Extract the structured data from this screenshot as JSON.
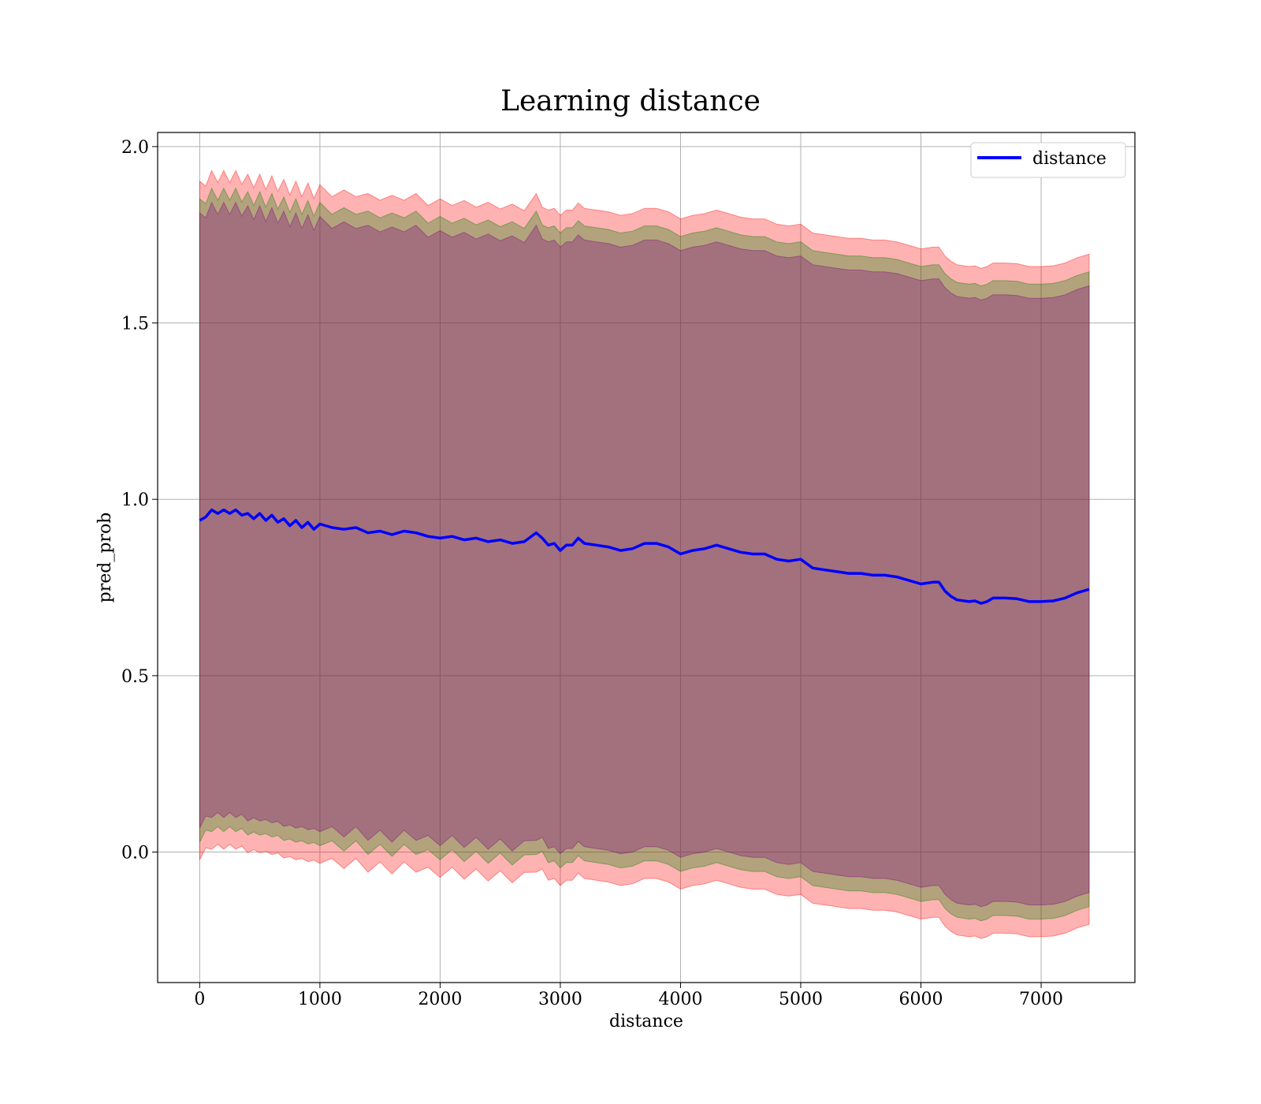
{
  "chart_data": {
    "type": "area",
    "title": "Learning distance",
    "xlabel": "distance",
    "ylabel": "pred_prob",
    "xlim": [
      -350,
      7780
    ],
    "ylim": [
      -0.37,
      2.04
    ],
    "xticks": [
      0,
      1000,
      2000,
      3000,
      4000,
      5000,
      6000,
      7000
    ],
    "yticks": [
      0.0,
      0.5,
      1.0,
      1.5,
      2.0
    ],
    "xtick_labels": [
      "0",
      "1000",
      "2000",
      "3000",
      "4000",
      "5000",
      "6000",
      "7000"
    ],
    "ytick_labels": [
      "0.0",
      "0.5",
      "1.0",
      "1.5",
      "2.0"
    ],
    "grid": true,
    "legend_position": "top-right",
    "colors": {
      "line": "#0000ff",
      "band_outer": "#ff0000",
      "band_middle": "#008000",
      "band_inner": "#800080"
    },
    "series": [
      {
        "name": "distance",
        "x": [
          0,
          50,
          100,
          150,
          200,
          250,
          300,
          350,
          400,
          450,
          500,
          550,
          600,
          650,
          700,
          750,
          800,
          850,
          900,
          950,
          1000,
          1100,
          1200,
          1300,
          1400,
          1500,
          1600,
          1700,
          1800,
          1900,
          2000,
          2100,
          2200,
          2300,
          2400,
          2500,
          2600,
          2700,
          2800,
          2850,
          2900,
          2950,
          3000,
          3050,
          3100,
          3150,
          3200,
          3300,
          3400,
          3500,
          3600,
          3700,
          3800,
          3900,
          4000,
          4100,
          4200,
          4300,
          4400,
          4500,
          4600,
          4700,
          4800,
          4900,
          5000,
          5100,
          5200,
          5300,
          5400,
          5500,
          5600,
          5700,
          5800,
          5900,
          6000,
          6100,
          6150,
          6200,
          6250,
          6300,
          6400,
          6450,
          6500,
          6550,
          6600,
          6700,
          6800,
          6900,
          7000,
          7100,
          7200,
          7300,
          7400
        ],
        "y": [
          0.94,
          0.95,
          0.97,
          0.96,
          0.97,
          0.96,
          0.97,
          0.955,
          0.96,
          0.945,
          0.96,
          0.94,
          0.955,
          0.935,
          0.945,
          0.925,
          0.94,
          0.92,
          0.935,
          0.915,
          0.93,
          0.92,
          0.915,
          0.92,
          0.905,
          0.91,
          0.9,
          0.91,
          0.905,
          0.895,
          0.89,
          0.895,
          0.885,
          0.89,
          0.88,
          0.885,
          0.875,
          0.88,
          0.905,
          0.89,
          0.87,
          0.875,
          0.855,
          0.87,
          0.87,
          0.89,
          0.875,
          0.87,
          0.865,
          0.855,
          0.86,
          0.875,
          0.875,
          0.865,
          0.845,
          0.855,
          0.86,
          0.87,
          0.86,
          0.85,
          0.845,
          0.845,
          0.83,
          0.825,
          0.83,
          0.805,
          0.8,
          0.795,
          0.79,
          0.79,
          0.785,
          0.785,
          0.78,
          0.77,
          0.76,
          0.765,
          0.765,
          0.74,
          0.725,
          0.715,
          0.71,
          0.712,
          0.705,
          0.71,
          0.72,
          0.72,
          0.718,
          0.71,
          0.71,
          0.712,
          0.72,
          0.735,
          0.745
        ]
      }
    ],
    "bands": [
      {
        "offset": 0.95,
        "color": "#ff0000",
        "opacity": 0.3
      },
      {
        "offset": 0.9,
        "color": "#008000",
        "opacity": 0.3
      },
      {
        "offset": 0.86,
        "color": "#800080",
        "opacity": 0.3
      }
    ]
  }
}
